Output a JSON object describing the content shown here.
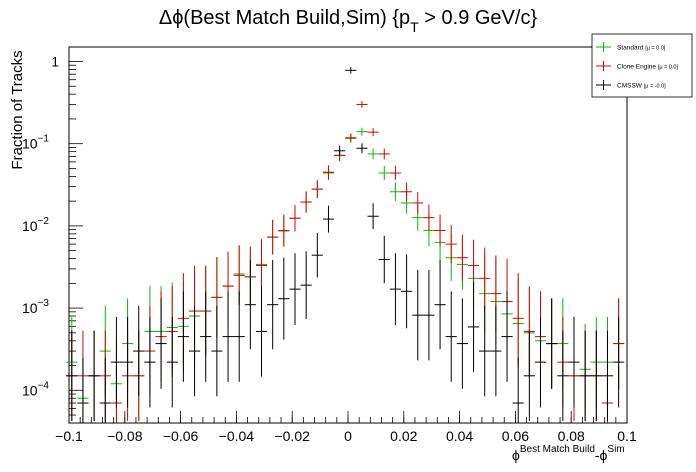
{
  "chart_data": {
    "type": "scatter",
    "title": "Δϕ(Best Match Build,Sim) {p_T > 0.9 GeV/c}",
    "title_main": "Δϕ(Best Match Build,Sim) {p",
    "title_sub": "T",
    "title_tail": " > 0.9 GeV/c}",
    "xlabel_main": "ϕ",
    "xlabel_sup1": "Best Match Build",
    "xlabel_mid": "-ϕ",
    "xlabel_sup2": "Sim",
    "ylabel": "Fraction of Tracks",
    "xlim": [
      -0.1,
      0.1
    ],
    "ylim": [
      4e-05,
      1.5
    ],
    "y_scale": "log",
    "grid": false,
    "legend_position": "top-right",
    "x_ticks": [
      -0.1,
      -0.08,
      -0.06,
      -0.04,
      -0.02,
      0,
      0.02,
      0.04,
      0.06,
      0.08,
      0.1
    ],
    "x_tick_labels": [
      "−0.1",
      "−0.08",
      "−0.06",
      "−0.04",
      "−0.02",
      "0",
      "0.02",
      "0.04",
      "0.06",
      "0.08",
      "0.1"
    ],
    "y_ticks": [
      0.0001,
      0.001,
      0.01,
      0.1,
      1
    ],
    "y_tick_labels": [
      {
        "base": "10",
        "exp": "−4"
      },
      {
        "base": "10",
        "exp": "−3"
      },
      {
        "base": "10",
        "exp": "−2"
      },
      {
        "base": "10",
        "exp": "−1"
      },
      {
        "base": "1",
        "exp": ""
      }
    ],
    "x": [
      -0.099,
      -0.095,
      -0.091,
      -0.087,
      -0.083,
      -0.079,
      -0.075,
      -0.071,
      -0.067,
      -0.063,
      -0.059,
      -0.055,
      -0.051,
      -0.047,
      -0.043,
      -0.039,
      -0.035,
      -0.031,
      -0.027,
      -0.023,
      -0.019,
      -0.015,
      -0.011,
      -0.007,
      -0.003,
      0.001,
      0.005,
      0.009,
      0.013,
      0.017,
      0.021,
      0.025,
      0.029,
      0.033,
      0.037,
      0.041,
      0.045,
      0.049,
      0.053,
      0.057,
      0.061,
      0.065,
      0.069,
      0.073,
      0.077,
      0.081,
      0.085,
      0.089,
      0.093,
      0.097
    ],
    "series": [
      {
        "name": "Standard",
        "legend_stat": "[μ = 0.0]",
        "color": "#00bb00",
        "values": [
          0.00022,
          8e-05,
          0.00015,
          0.0003,
          0.00012,
          0.00037,
          0.00015,
          0.00052,
          0.00052,
          0.00058,
          0.0006,
          0.0008,
          0.00092,
          0.00135,
          0.00185,
          0.0026,
          0.0024,
          0.0034,
          0.0073,
          0.0088,
          0.0124,
          0.0195,
          0.028,
          0.044,
          0.072,
          0.116,
          0.14,
          0.075,
          0.044,
          0.026,
          0.019,
          0.0126,
          0.0088,
          0.0063,
          0.0041,
          0.0034,
          0.0023,
          0.0015,
          0.0012,
          0.00085,
          0.00065,
          0.0005,
          0.0004,
          0.00037,
          0.00037,
          0.00015,
          0.00018,
          0.00022,
          0.00022,
          0.00037
        ]
      },
      {
        "name": "Clone Engine",
        "legend_stat": "[μ = 0.0]",
        "color": "#dd0000",
        "values": [
          0.00015,
          0.00015,
          0.00015,
          0.00015,
          7e-05,
          0.00015,
          0.00015,
          0.0003,
          0.00045,
          0.00052,
          0.00075,
          0.00092,
          0.00092,
          0.00135,
          0.00185,
          0.0025,
          0.0024,
          0.0033,
          0.0073,
          0.0087,
          0.0124,
          0.0195,
          0.028,
          0.045,
          0.072,
          0.118,
          0.3,
          0.138,
          0.075,
          0.044,
          0.026,
          0.019,
          0.0126,
          0.0088,
          0.006,
          0.0041,
          0.0033,
          0.0023,
          0.0015,
          0.0012,
          0.00075,
          0.00052,
          0.00045,
          0.00037,
          0.00022,
          0.00015,
          0.00015,
          0.00015,
          7e-05,
          0.00037
        ]
      },
      {
        "name": "CMSSW",
        "legend_stat": "[μ = -0.0]",
        "color": "#000000",
        "values": [
          0.00015,
          7e-05,
          0.00015,
          7e-05,
          0.00022,
          0.00022,
          0.0003,
          0.00022,
          0.00037,
          0.00022,
          0.00045,
          0.0003,
          0.00045,
          0.0003,
          0.00045,
          0.00045,
          0.0011,
          0.00052,
          0.0011,
          0.0013,
          0.0017,
          0.0019,
          0.0044,
          0.0121,
          0.082,
          0.78,
          0.088,
          0.0131,
          0.0039,
          0.0017,
          0.0016,
          0.00082,
          0.00082,
          0.0011,
          0.00045,
          0.00037,
          0.00059,
          0.0003,
          0.0003,
          0.00045,
          7e-05,
          0.00015,
          0.00022,
          0.00037,
          0.00015,
          0.00022,
          0.00015,
          0.00015,
          0.00015,
          0.00022
        ]
      }
    ]
  }
}
